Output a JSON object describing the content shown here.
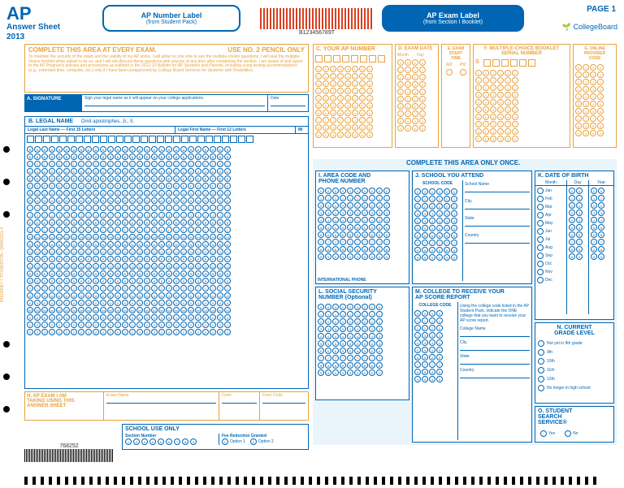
{
  "header": {
    "logo": "AP",
    "subtitle": "Answer Sheet",
    "year": "2013",
    "number_label_title": "AP Number Label",
    "number_label_sub": "(from Student Pack)",
    "exam_label_title": "AP Exam Label",
    "exam_label_sub": "(from Section I Booklet)",
    "page": "PAGE 1",
    "org": "CollegeBoard",
    "barcode_text": "B123456789T"
  },
  "complete_banner": {
    "title": "COMPLETE THIS AREA AT EVERY EXAM.",
    "pencil": "USE NO. 2 PENCIL ONLY",
    "fine_print": "To maintain the security of the exam and the validity of my AP score, I will allow no one else to see the multiple-choice questions. I will seal the multiple-choice booklet when asked to do so, and I will not discuss these questions with anyone at any time after completing the section. I am aware of and agree to the AP Program's policies and procedures as outlined in the 2012-13 Bulletin for AP Students and Parents, including using testing accommodations (e.g., extended time, computer, etc.) only if I have been preapproved by College Board Services for Students with Disabilities."
  },
  "A": {
    "title": "A. SIGNATURE",
    "hint": "Sign your legal name as it will appear on your college applications.",
    "date": "Date"
  },
  "B": {
    "title": "B. LEGAL NAME",
    "note": "Omit apostrophes, Jr., II.",
    "last": "Legal Last Name — First 15 Letters",
    "first": "Legal First Name — First 12 Letters",
    "mi": "MI"
  },
  "C": {
    "title": "C. YOUR AP NUMBER"
  },
  "D": {
    "title": "D. EXAM DATE",
    "month": "Month",
    "day": "Day"
  },
  "E": {
    "title": "E. EXAM\nSTART\nTIME",
    "am": "AM",
    "pm": "PM"
  },
  "F": {
    "title": "F. MULTIPLE-CHOICE BOOKLET\nSERIAL NUMBER",
    "s": "S"
  },
  "G": {
    "title": "G. ONLINE\nPROVIDER\nCODE"
  },
  "H": {
    "title": "H. AP EXAM I AM\nTAKING USING THIS\nANSWER SHEET",
    "exam_name": "Exam Name",
    "form": "Form",
    "form_code": "Form Code"
  },
  "school_use": {
    "title": "SCHOOL USE ONLY",
    "section_number": "Section Number",
    "fee": "Fee Reduction Granted",
    "opt1": "Option 1",
    "opt2": "Option 2"
  },
  "complete_once": "COMPLETE THIS AREA ONLY ONCE.",
  "I": {
    "title": "I. AREA CODE AND\nPHONE NUMBER",
    "intl": "INTERNATIONAL PHONE"
  },
  "J": {
    "title": "J. SCHOOL YOU ATTEND",
    "code": "SCHOOL CODE",
    "name": "School Name",
    "city": "City",
    "state": "State",
    "country": "Country"
  },
  "K": {
    "title": "K. DATE OF BIRTH",
    "month": "Month",
    "day": "Day",
    "year": "Year",
    "months": [
      "Jan",
      "Feb",
      "Mar",
      "Apr",
      "May",
      "Jun",
      "Jul",
      "Aug",
      "Sep",
      "Oct",
      "Nov",
      "Dec"
    ]
  },
  "L": {
    "title": "L. SOCIAL SECURITY\nNUMBER (Optional)"
  },
  "M": {
    "title": "M. COLLEGE TO RECEIVE YOUR\nAP SCORE REPORT",
    "code": "COLLEGE CODE",
    "instr": "Using the college code listed in the AP Student Pack, indicate the ONE college that you want to receive your AP score report.",
    "name": "College Name",
    "city": "City",
    "state": "State",
    "country": "Country"
  },
  "N": {
    "title": "N. CURRENT\nGRADE LEVEL",
    "opts": [
      "Not yet in 9th grade",
      "9th",
      "10th",
      "11th",
      "12th",
      "No longer in high school"
    ]
  },
  "O": {
    "title": "O. STUDENT\nSEARCH\nSERVICE®",
    "yes": "Yes",
    "no": "No"
  },
  "form_number": "768252",
  "side_code": "941100067-7 TF218HS735– Q4860S11-4",
  "colors": {
    "blue": "#0066b3",
    "orange": "#e8a23d",
    "lightblue": "#eaf4fb"
  }
}
